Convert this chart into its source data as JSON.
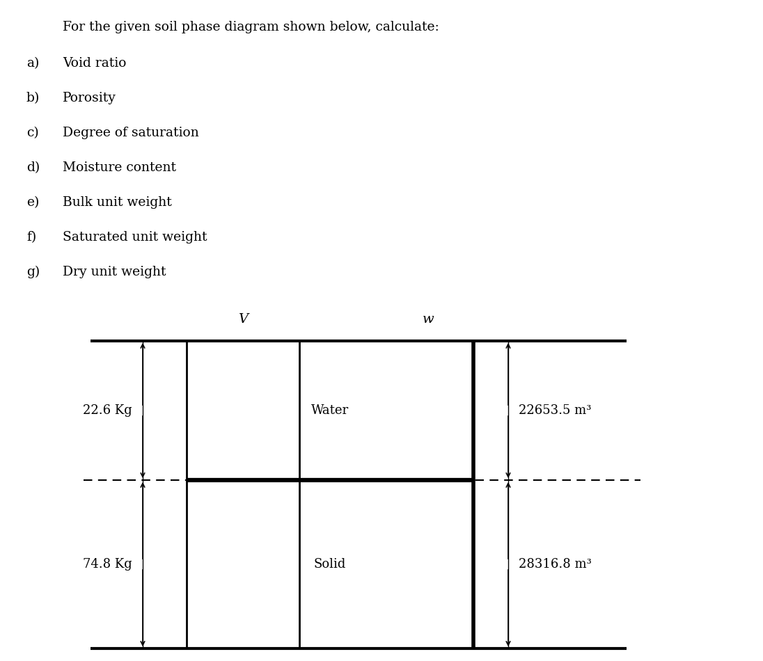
{
  "title_text": "For the given soil phase diagram shown below, calculate:",
  "items": [
    {
      "letter": "a)",
      "text": "Void ratio"
    },
    {
      "letter": "b)",
      "text": "Porosity"
    },
    {
      "letter": "c)",
      "text": "Degree of saturation"
    },
    {
      "letter": "d)",
      "text": "Moisture content"
    },
    {
      "letter": "e)",
      "text": "Bulk unit weight"
    },
    {
      "letter": "f)",
      "text": "Saturated unit weight"
    },
    {
      "letter": "g)",
      "text": "Dry unit weight"
    }
  ],
  "bg_color": "#ffffff",
  "text_color": "#000000",
  "title_fontsize": 13.5,
  "item_fontsize": 13.5,
  "diagram": {
    "left_col_label": "V",
    "right_col_label": "w",
    "top_section_label": "Water",
    "bottom_section_label": "Solid",
    "left_top_value": "22.6 Kg",
    "left_bottom_value": "74.8 Kg",
    "right_top_value": "22653.5 m³",
    "right_bottom_value": "28316.8 m³",
    "section_fontsize": 13,
    "value_fontsize": 13,
    "label_fontsize": 14
  }
}
